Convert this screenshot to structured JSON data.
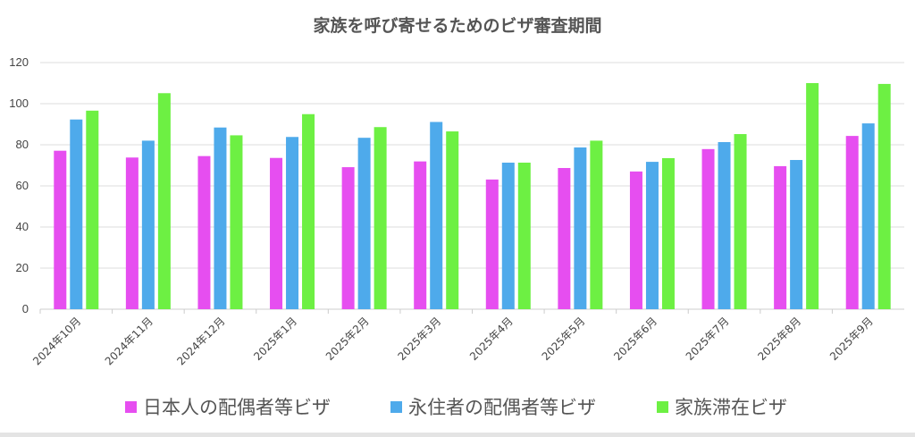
{
  "chart_data": {
    "type": "bar",
    "title": "家族を呼び寄せるためのビザ審査期間",
    "categories": [
      "2024年10月",
      "2024年11月",
      "2024年12月",
      "2025年1月",
      "2025年2月",
      "2025年3月",
      "2025年4月",
      "2025年5月",
      "2025年6月",
      "2025年7月",
      "2025年8月",
      "2025年9月"
    ],
    "series": [
      {
        "name": "日本人の配偶者等ビザ",
        "color": "#e64ef0",
        "values": [
          77.1,
          73.8,
          74.5,
          73.6,
          69.1,
          71.9,
          63.1,
          68.7,
          67.0,
          77.9,
          69.6,
          84.3
        ]
      },
      {
        "name": "永住者の配偶者等ビザ",
        "color": "#4eaaeb",
        "values": [
          92.3,
          82.0,
          88.4,
          83.8,
          83.4,
          91.1,
          71.3,
          78.7,
          71.7,
          81.3,
          72.6,
          90.4
        ]
      },
      {
        "name": "家族滞在ビザ",
        "color": "#6df043",
        "values": [
          96.6,
          105.1,
          84.6,
          94.9,
          88.6,
          86.5,
          71.3,
          82.0,
          73.5,
          85.2,
          110.0,
          109.6
        ]
      }
    ],
    "yticks": [
      0,
      20,
      40,
      60,
      80,
      100,
      120
    ],
    "ylim": [
      0,
      120
    ],
    "xlabel": "",
    "ylabel": "",
    "grid": true,
    "legend": "bottom"
  }
}
